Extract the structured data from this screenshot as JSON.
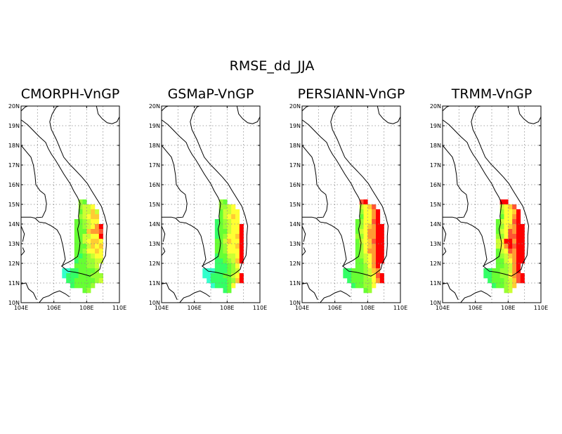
{
  "figure": {
    "title": "RMSE_dd_JJA",
    "colors": {
      "c1": "#33ffcc",
      "c2": "#33ff66",
      "c3": "#66ff33",
      "c4": "#99ff33",
      "c5": "#ccff33",
      "c6": "#ffff33",
      "c7": "#ffcc33",
      "c8": "#ff9933",
      "c9": "#ff5533",
      "c10": "#ff0000"
    },
    "axes": {
      "lon_ticks": [
        "104E",
        "106E",
        "108E",
        "110E"
      ],
      "lat_ticks": [
        "20N",
        "19N",
        "18N",
        "17N",
        "16N",
        "15N",
        "14N",
        "13N",
        "12N",
        "11N",
        "10N"
      ],
      "xlim": [
        104,
        110
      ],
      "ylim": [
        10,
        20
      ],
      "grid": "dotted"
    },
    "panels": [
      {
        "title": "CMORPH-VnGP",
        "key": "cmorph"
      },
      {
        "title": "GSMaP-VnGP",
        "key": "gsmap"
      },
      {
        "title": "PERSIANN-VnGP",
        "key": "persiann"
      },
      {
        "title": "TRMM-VnGP",
        "key": "trmm"
      }
    ]
  },
  "chart_data": {
    "type": "heatmap",
    "variable": "RMSE_dd_JJA",
    "grid_origin": {
      "lon": 106.5,
      "lat": 15.25
    },
    "cell_size_deg": 0.25,
    "region_mask": [
      "....##........",
      "....####......",
      "....#####.....",
      "....#####.....",
      "...######.....",
      "...#######....",
      "...#######....",
      "...#######....",
      "...#######....",
      "...#######....",
      "...#######....",
      "...#######....",
      "...#######....",
      "...######.....",
      "#########.....",
      "##########....",
      ".#########....",
      "..######......",
      ".....##......."
    ],
    "maps": {
      "cmorph": [
        "....43........",
        "....4556......",
        "....35575.....",
        "....45677.....",
        "...334566.....",
        "...3345680....",
        "...3337889....",
        "...3355660....",
        "...3356776....",
        "...3335767....",
        "...3346676....",
        "...3234566....",
        "...2334455....",
        "...333445.....",
        "112233334.....",
        "1222333444....",
        ".223333345....",
        "..233334......",
        ".....34......."
      ],
      "gsmap": [
        "....43........",
        "....4456......",
        "....35566.....",
        "....35676.....",
        "...234566.....",
        "...2345660....",
        "...2335660....",
        "...2346670....",
        "...3357660....",
        "...3346670....",
        "...3346660....",
        "...2335560....",
        "...2234570....",
        "...222346.....",
        "111222345.....",
        "1122233560....",
        ".122223470....",
        "..122236......",
        ".....23......."
      ],
      "persiann": [
        "....90........",
        "....5679......",
        "....46680.....",
        "....36680.....",
        "...346690.....",
        "...3467800....",
        "...3568800....",
        "...4468800....",
        "...3567900....",
        "...3467800....",
        "...3468800....",
        "...3456800....",
        "...3356800....",
        "...334680.....",
        "223334578.....",
        "2233345690....",
        ".233344680....",
        "..233446......",
        ".....34......."
      ],
      "trmm": [
        "....00........",
        "....5679......",
        "....46670.....",
        "....36680.....",
        "...356690.....",
        "...3467800....",
        "...3569800....",
        "...4469900....",
        "...5600800....",
        "...5680900....",
        "...3569800....",
        "...3457800....",
        "...3356800....",
        "...334580.....",
        "223344580.....",
        "2233446890....",
        ".233345790....",
        "..233457......",
        ".....45......."
      ]
    }
  }
}
